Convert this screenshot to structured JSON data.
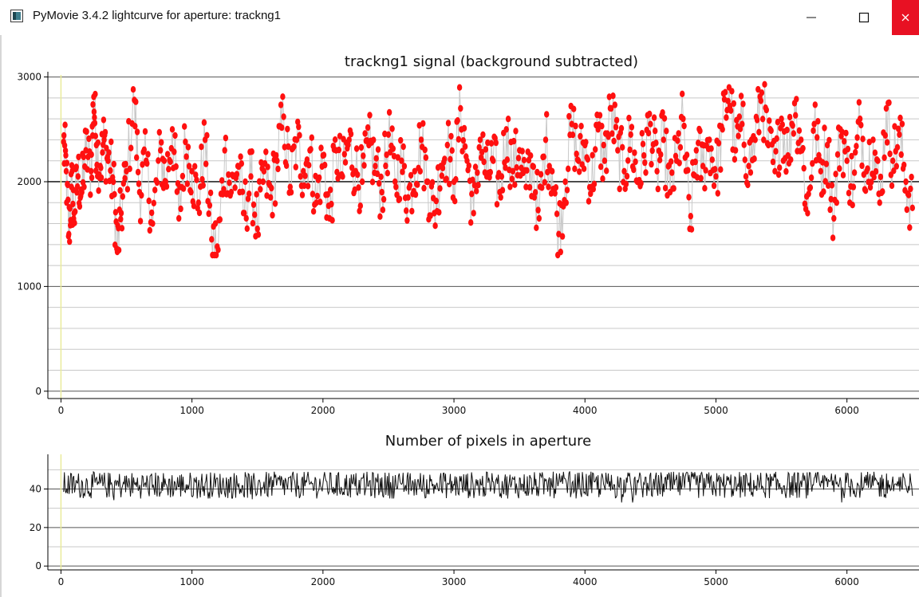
{
  "window": {
    "title": "PyMovie 3.4.2 lightcurve for aperture: trackng1",
    "controls": [
      "minimize",
      "maximize",
      "close"
    ],
    "close_color": "#e81123"
  },
  "chart_data": [
    {
      "type": "scatter",
      "title": "trackng1 signal (background subtracted)",
      "xlabel": "",
      "ylabel": "",
      "xlim": [
        -100,
        6550
      ],
      "ylim": [
        -70,
        3050
      ],
      "xticks": [
        0,
        1000,
        2000,
        3000,
        4000,
        5000,
        6000
      ],
      "yticks": [
        0,
        1000,
        2000,
        3000
      ],
      "grid": true,
      "marker_color": "#ff1010",
      "line_color": "#c9c9c9",
      "reference_line": 2000,
      "series": [
        {
          "points_approx": [
            [
              20,
              2380
            ],
            [
              40,
              2100
            ],
            [
              60,
              1500
            ],
            [
              80,
              1950
            ],
            [
              100,
              1700
            ],
            [
              130,
              2050
            ],
            [
              160,
              1900
            ],
            [
              190,
              2300
            ],
            [
              230,
              2100
            ],
            [
              250,
              2810
            ],
            [
              270,
              2350
            ],
            [
              300,
              2150
            ],
            [
              330,
              2400
            ],
            [
              360,
              2200
            ],
            [
              400,
              2000
            ],
            [
              430,
              1330
            ],
            [
              460,
              1700
            ],
            [
              500,
              2100
            ],
            [
              560,
              2780
            ],
            [
              600,
              1900
            ],
            [
              650,
              2200
            ],
            [
              700,
              1600
            ],
            [
              760,
              2300
            ],
            [
              800,
              2000
            ],
            [
              850,
              2500
            ],
            [
              900,
              1650
            ],
            [
              950,
              2380
            ],
            [
              1000,
              2100
            ],
            [
              1050,
              1800
            ],
            [
              1100,
              2400
            ],
            [
              1150,
              1450
            ],
            [
              1200,
              1350
            ],
            [
              1250,
              2300
            ],
            [
              1300,
              1900
            ],
            [
              1350,
              2150
            ],
            [
              1400,
              1700
            ],
            [
              1450,
              2050
            ],
            [
              1500,
              1550
            ],
            [
              1550,
              2100
            ],
            [
              1600,
              1850
            ],
            [
              1650,
              2200
            ],
            [
              1700,
              2620
            ],
            [
              1750,
              1950
            ],
            [
              1800,
              2400
            ],
            [
              1850,
              2100
            ],
            [
              1900,
              2300
            ],
            [
              1950,
              1800
            ],
            [
              2000,
              2250
            ],
            [
              2050,
              1650
            ],
            [
              2100,
              2300
            ],
            [
              2150,
              2050
            ],
            [
              2200,
              2400
            ],
            [
              2250,
              2100
            ],
            [
              2300,
              2000
            ],
            [
              2350,
              2350
            ],
            [
              2400,
              2150
            ],
            [
              2450,
              1900
            ],
            [
              2500,
              2450
            ],
            [
              2550,
              2000
            ],
            [
              2600,
              2200
            ],
            [
              2650,
              1850
            ],
            [
              2700,
              2100
            ],
            [
              2750,
              2400
            ],
            [
              2800,
              2000
            ],
            [
              2850,
              1700
            ],
            [
              2900,
              2150
            ],
            [
              2950,
              2350
            ],
            [
              3000,
              2000
            ],
            [
              3050,
              2700
            ],
            [
              3100,
              2200
            ],
            [
              3150,
              1700
            ],
            [
              3200,
              2400
            ],
            [
              3250,
              2050
            ],
            [
              3300,
              2200
            ],
            [
              3350,
              1900
            ],
            [
              3400,
              2500
            ],
            [
              3450,
              2100
            ],
            [
              3500,
              2300
            ],
            [
              3550,
              1950
            ],
            [
              3600,
              2150
            ],
            [
              3650,
              1650
            ],
            [
              3700,
              2400
            ],
            [
              3750,
              2100
            ],
            [
              3800,
              1500
            ],
            [
              3850,
              2000
            ],
            [
              3900,
              2550
            ],
            [
              3950,
              2200
            ],
            [
              4000,
              2350
            ],
            [
              4050,
              1950
            ],
            [
              4100,
              2500
            ],
            [
              4150,
              2200
            ],
            [
              4200,
              2700
            ],
            [
              4250,
              2300
            ],
            [
              4300,
              2100
            ],
            [
              4350,
              2450
            ],
            [
              4400,
              2000
            ],
            [
              4450,
              2250
            ],
            [
              4500,
              2550
            ],
            [
              4550,
              2100
            ],
            [
              4600,
              2400
            ],
            [
              4650,
              1900
            ],
            [
              4700,
              2200
            ],
            [
              4750,
              2600
            ],
            [
              4800,
              1550
            ],
            [
              4850,
              2300
            ],
            [
              4900,
              2150
            ],
            [
              4950,
              2400
            ],
            [
              5000,
              2050
            ],
            [
              5050,
              2500
            ],
            [
              5100,
              2900
            ],
            [
              5150,
              2300
            ],
            [
              5200,
              2550
            ],
            [
              5250,
              2150
            ],
            [
              5300,
              2400
            ],
            [
              5350,
              2850
            ],
            [
              5400,
              2350
            ],
            [
              5450,
              2100
            ],
            [
              5500,
              2600
            ],
            [
              5550,
              2250
            ],
            [
              5600,
              2750
            ],
            [
              5650,
              2400
            ],
            [
              5700,
              1700
            ],
            [
              5750,
              2550
            ],
            [
              5800,
              2100
            ],
            [
              5850,
              2350
            ],
            [
              5900,
              1650
            ],
            [
              5950,
              2500
            ],
            [
              6000,
              2200
            ],
            [
              6050,
              1950
            ],
            [
              6100,
              2600
            ],
            [
              6150,
              2100
            ],
            [
              6200,
              2400
            ],
            [
              6250,
              1800
            ],
            [
              6300,
              2700
            ],
            [
              6350,
              2200
            ],
            [
              6400,
              2450
            ],
            [
              6450,
              2000
            ],
            [
              6500,
              1750
            ]
          ]
        }
      ]
    },
    {
      "type": "line",
      "title": "Number of pixels in aperture",
      "xlabel": "",
      "ylabel": "",
      "xlim": [
        -100,
        6550
      ],
      "ylim": [
        -2,
        58
      ],
      "xticks": [
        0,
        1000,
        2000,
        3000,
        4000,
        5000,
        6000
      ],
      "yticks": [
        0,
        20,
        40
      ],
      "grid": true,
      "line_color": "#111111",
      "series": [
        {
          "mean_approx": 42,
          "range_approx": [
            33,
            54
          ]
        }
      ]
    }
  ]
}
